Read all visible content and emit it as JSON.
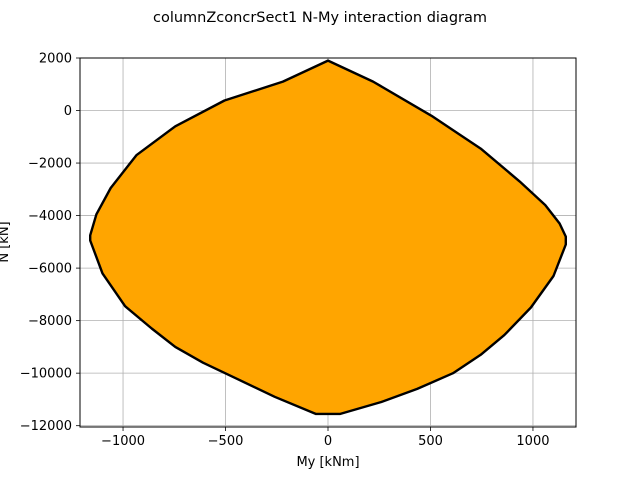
{
  "chart_data": {
    "type": "area",
    "title": "columnZconcrSect1 N-My interaction diagram",
    "xlabel": "My [kNm]",
    "ylabel": "N [kN]",
    "xlim": [
      -1210,
      1210
    ],
    "ylim": [
      -12050,
      2000
    ],
    "xticks": [
      -1000,
      -500,
      0,
      500,
      1000
    ],
    "xtick_labels": [
      "−1000",
      "−500",
      "0",
      "500",
      "1000"
    ],
    "yticks": [
      2000,
      0,
      -2000,
      -4000,
      -6000,
      -8000,
      -10000,
      -12000
    ],
    "ytick_labels": [
      "2000",
      "0",
      "−2000",
      "−4000",
      "−6000",
      "−8000",
      "−10000",
      "−12000"
    ],
    "grid": true,
    "fill_color": "#ffa500",
    "edge_color": "#000000",
    "series": [
      {
        "x": [
          0,
          220,
          505,
          745,
          935,
          1060,
          1130,
          1160,
          1160,
          1100,
          990,
          860,
          745,
          610,
          435,
          260,
          60,
          -60,
          -260,
          -435,
          -610,
          -745,
          -860,
          -990,
          -1100,
          -1160,
          -1160,
          -1130,
          -1060,
          -935,
          -745,
          -505,
          -220,
          0
        ],
        "y": [
          1900,
          1100,
          -200,
          -1450,
          -2700,
          -3600,
          -4300,
          -4800,
          -5100,
          -6300,
          -7500,
          -8550,
          -9300,
          -10000,
          -10600,
          -11100,
          -11550,
          -11550,
          -10900,
          -10250,
          -9600,
          -9000,
          -8300,
          -7450,
          -6200,
          -4950,
          -4750,
          -3950,
          -2950,
          -1700,
          -600,
          380,
          1100,
          1900
        ]
      }
    ]
  }
}
